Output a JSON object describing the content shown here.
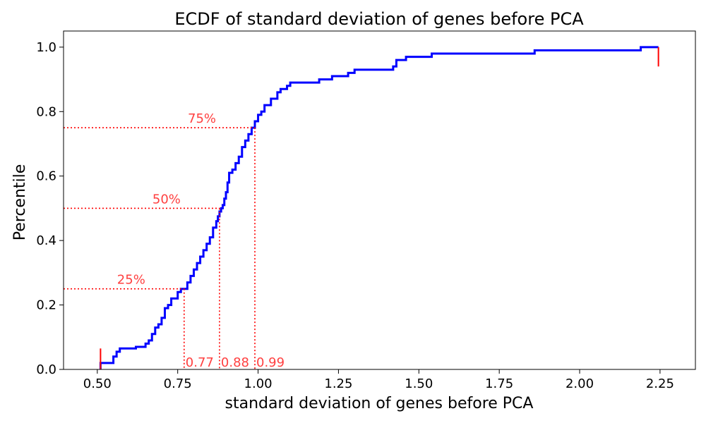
{
  "chart_data": {
    "type": "line",
    "title": "ECDF of standard deviation of genes before PCA",
    "xlabel": "standard deviation of genes before PCA",
    "ylabel": "Percentile",
    "xlim": [
      0.395,
      2.36
    ],
    "ylim": [
      0.0,
      1.05
    ],
    "xticks": [
      0.5,
      0.75,
      1.0,
      1.25,
      1.5,
      1.75,
      2.0,
      2.25
    ],
    "xtick_labels": [
      "0.50",
      "0.75",
      "1.00",
      "1.25",
      "1.50",
      "1.75",
      "2.00",
      "2.25"
    ],
    "yticks": [
      0.0,
      0.2,
      0.4,
      0.6,
      0.8,
      1.0
    ],
    "ytick_labels": [
      "0.0",
      "0.2",
      "0.4",
      "0.6",
      "0.8",
      "1.0"
    ],
    "grid": false,
    "series": [
      {
        "color": "#0000ff",
        "step": "post",
        "x": [
          0.51,
          0.52,
          0.55,
          0.56,
          0.57,
          0.61,
          0.62,
          0.65,
          0.66,
          0.67,
          0.68,
          0.69,
          0.7,
          0.71,
          0.72,
          0.73,
          0.75,
          0.76,
          0.78,
          0.79,
          0.8,
          0.81,
          0.82,
          0.83,
          0.84,
          0.85,
          0.86,
          0.87,
          0.875,
          0.88,
          0.885,
          0.89,
          0.895,
          0.9,
          0.905,
          0.91,
          0.92,
          0.93,
          0.94,
          0.95,
          0.96,
          0.97,
          0.98,
          0.99,
          1.0,
          1.01,
          1.02,
          1.04,
          1.06,
          1.07,
          1.09,
          1.1,
          1.12,
          1.19,
          1.23,
          1.28,
          1.3,
          1.42,
          1.43,
          1.46,
          1.54,
          1.86,
          2.19,
          2.245
        ],
        "y": [
          0.02,
          0.02,
          0.04,
          0.055,
          0.065,
          0.065,
          0.07,
          0.08,
          0.09,
          0.11,
          0.13,
          0.14,
          0.16,
          0.19,
          0.2,
          0.22,
          0.24,
          0.25,
          0.27,
          0.29,
          0.31,
          0.33,
          0.35,
          0.37,
          0.39,
          0.41,
          0.44,
          0.46,
          0.475,
          0.49,
          0.5,
          0.51,
          0.53,
          0.55,
          0.58,
          0.61,
          0.62,
          0.64,
          0.66,
          0.69,
          0.71,
          0.73,
          0.75,
          0.77,
          0.79,
          0.8,
          0.82,
          0.84,
          0.86,
          0.87,
          0.88,
          0.89,
          0.89,
          0.9,
          0.91,
          0.92,
          0.93,
          0.94,
          0.96,
          0.97,
          0.98,
          0.99,
          1.0,
          1.0
        ]
      }
    ],
    "percentile_markers": [
      {
        "label": "25%",
        "percentile": 0.25,
        "x": 0.77,
        "x_label": "0.77"
      },
      {
        "label": "50%",
        "percentile": 0.5,
        "x": 0.88,
        "x_label": "0.88"
      },
      {
        "label": "75%",
        "percentile": 0.75,
        "x": 0.99,
        "x_label": "0.99"
      }
    ],
    "endpoint_markers": [
      {
        "x": 0.51,
        "y0": 0.0,
        "y1": 0.065
      },
      {
        "x": 2.245,
        "y0": 0.94,
        "y1": 1.0
      }
    ],
    "colors": {
      "line": "#0000ff",
      "annotation": "#ff0000",
      "annotation_text": "#ff4040"
    }
  }
}
